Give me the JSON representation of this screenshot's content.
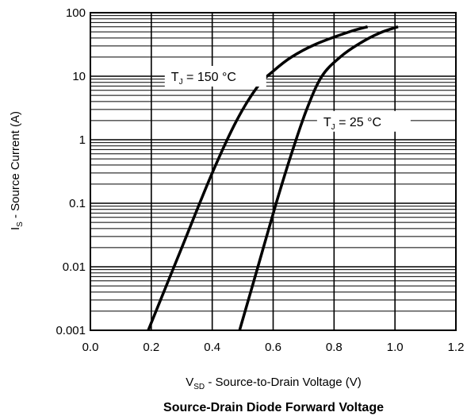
{
  "chart_data": {
    "type": "line",
    "title": "Source-Drain Diode Forward Voltage",
    "xlabel": {
      "main": "V",
      "sub": "SD",
      "rest": " - Source-to-Drain Voltage (V)"
    },
    "ylabel": {
      "main": "I",
      "sub": "S",
      "rest": " - Source Current (A)"
    },
    "xlim": [
      0,
      1.2
    ],
    "ylim": [
      0.001,
      100
    ],
    "yscale": "log",
    "grid": true,
    "x_ticks": [
      0.0,
      0.2,
      0.4,
      0.6,
      0.8,
      1.0,
      1.2
    ],
    "x_tick_labels": [
      "0.0",
      "0.2",
      "0.4",
      "0.6",
      "0.8",
      "1.0",
      "1.2"
    ],
    "y_ticks": [
      0.001,
      0.01,
      0.1,
      1,
      10,
      100
    ],
    "y_tick_labels": [
      "0.001",
      "0.01",
      "0.1",
      "1",
      "10",
      "100"
    ],
    "series": [
      {
        "name": {
          "main": "T",
          "sub": "J",
          "rest": " = 150 °C"
        },
        "x": [
          0.19,
          0.3,
          0.4,
          0.48,
          0.55,
          0.6,
          0.66,
          0.74,
          0.85,
          0.91
        ],
        "y": [
          0.001,
          0.02,
          0.3,
          2.0,
          7.0,
          12.0,
          20.0,
          32.0,
          50.0,
          60.0
        ]
      },
      {
        "name": {
          "main": "T",
          "sub": "J",
          "rest": " = 25 °C"
        },
        "x": [
          0.49,
          0.55,
          0.61,
          0.66,
          0.71,
          0.76,
          0.82,
          0.88,
          0.95,
          1.01
        ],
        "y": [
          0.001,
          0.01,
          0.1,
          0.6,
          3.0,
          10.0,
          20.0,
          32.0,
          48.0,
          60.0
        ]
      }
    ]
  }
}
